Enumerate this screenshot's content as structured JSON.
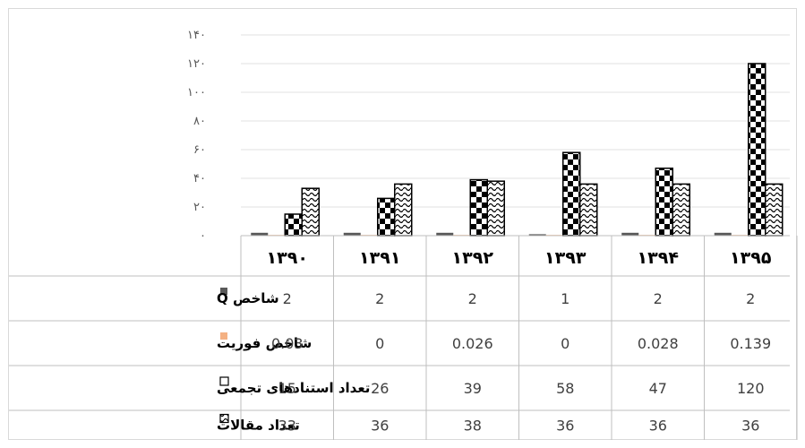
{
  "chart_data": {
    "type": "bar",
    "categories": [
      "۱۳۹۰",
      "۱۳۹۱",
      "۱۳۹۲",
      "۱۳۹۳",
      "۱۳۹۴",
      "۱۳۹۵"
    ],
    "ylim": [
      0,
      140
    ],
    "yticks": [
      "۰",
      "۲۰",
      "۴۰",
      "۶۰",
      "۸۰",
      "۱۰۰",
      "۱۲۰",
      "۱۴۰"
    ],
    "ytick_values": [
      0,
      20,
      40,
      60,
      80,
      100,
      120,
      140
    ],
    "grid": true,
    "legend": "data-table",
    "series": [
      {
        "name": "شاخص Q",
        "values": [
          2,
          2,
          2,
          1,
          2,
          2
        ],
        "display": [
          "2",
          "2",
          "2",
          "1",
          "2",
          "2"
        ],
        "fill": "#595959",
        "pattern": "solid"
      },
      {
        "name": "شاخص فوریت",
        "values": [
          0.03,
          0,
          0.026,
          0,
          0.028,
          0.139
        ],
        "display": [
          "0.03",
          "0",
          "0.026",
          "0",
          "0.028",
          "0.139"
        ],
        "fill": "#f4b183",
        "pattern": "solid"
      },
      {
        "name": "تعداد استنادهای تجمعی",
        "values": [
          15,
          26,
          39,
          58,
          47,
          120
        ],
        "display": [
          "15",
          "26",
          "39",
          "58",
          "47",
          "120"
        ],
        "fill": "#000000",
        "pattern": "checker"
      },
      {
        "name": "تعداد مقالات",
        "values": [
          33,
          36,
          38,
          36,
          36,
          36
        ],
        "display": [
          "33",
          "36",
          "38",
          "36",
          "36",
          "36"
        ],
        "fill": "#000000",
        "pattern": "wave"
      }
    ]
  }
}
